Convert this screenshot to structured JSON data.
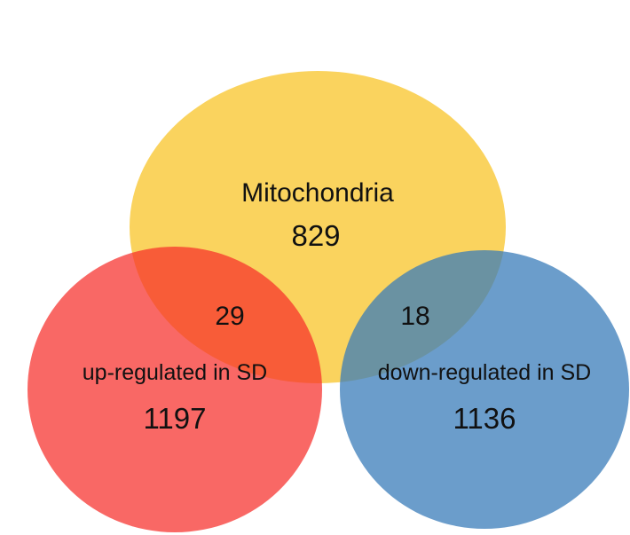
{
  "diagram": {
    "type": "venn",
    "sets": [
      {
        "id": "mitochondria",
        "label": "Mitochondria",
        "count": "829",
        "color": "#f9cb42"
      },
      {
        "id": "up",
        "label": "up-regulated in SD",
        "count": "1197",
        "color": "#f62e2a"
      },
      {
        "id": "down",
        "label": "down-regulated in SD",
        "count": "1136",
        "color": "#3a7cba"
      }
    ],
    "overlaps": [
      {
        "sets": [
          "mitochondria",
          "up"
        ],
        "count": "29"
      },
      {
        "sets": [
          "mitochondria",
          "down"
        ],
        "count": "18"
      }
    ]
  }
}
